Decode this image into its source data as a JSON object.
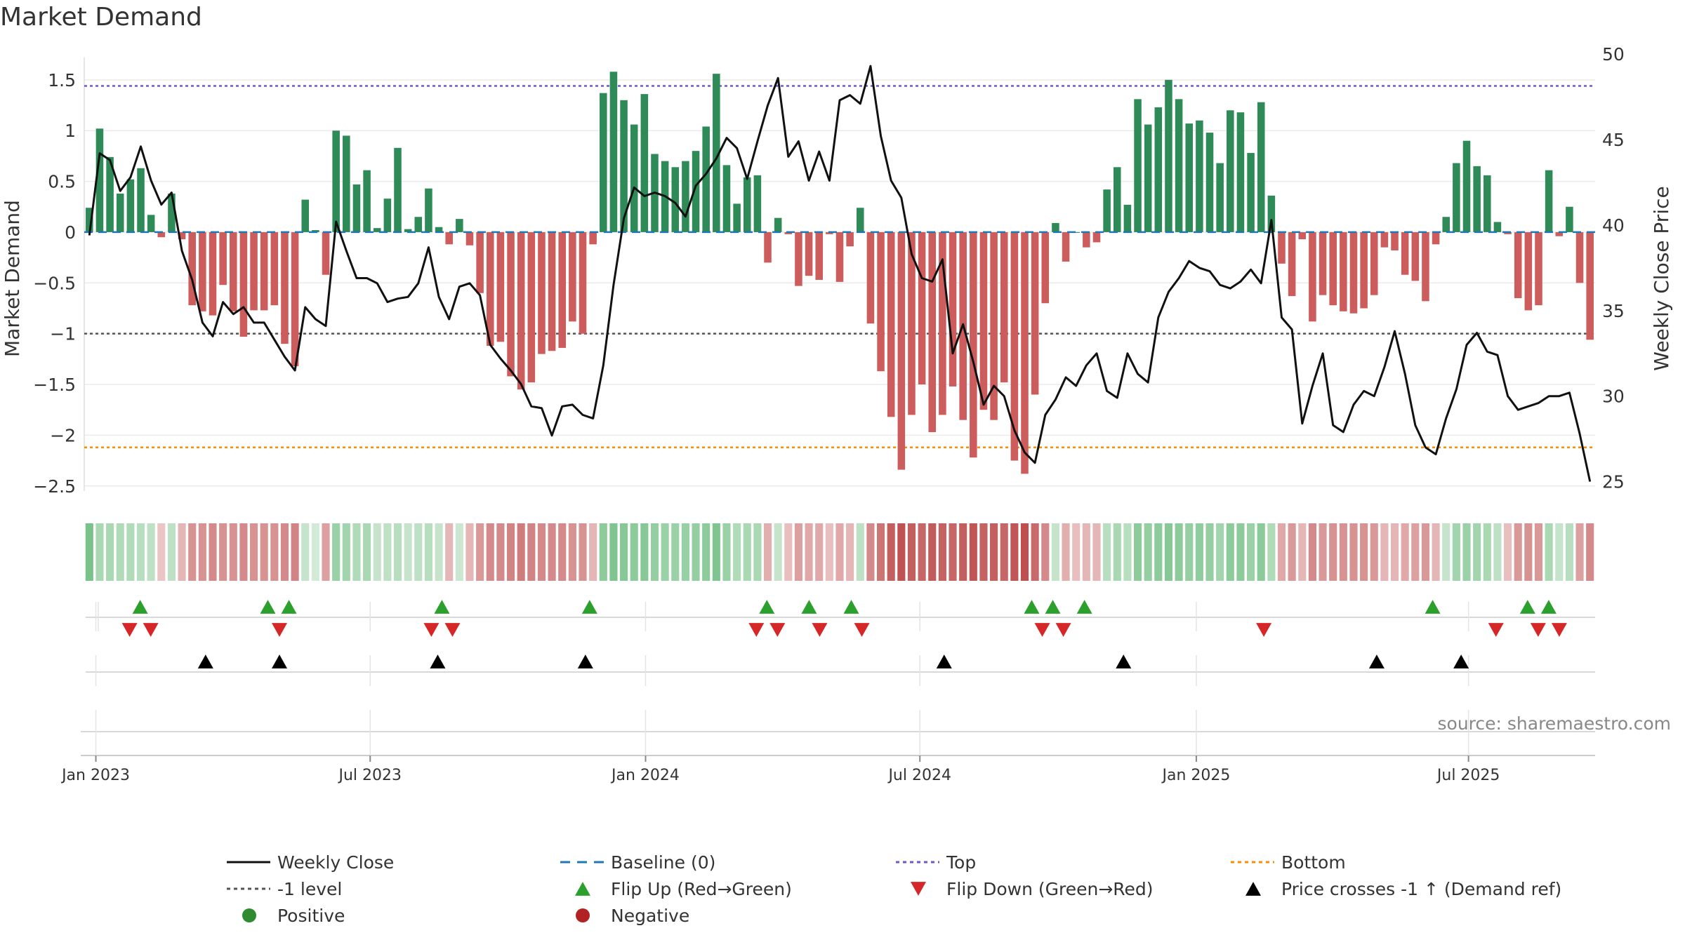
{
  "chart_data": {
    "type": "bar",
    "title": "Market Demand",
    "ylabel": "Market Demand",
    "y2label": "Weekly Close Price",
    "ylim": [
      -2.55,
      1.72
    ],
    "y2lim": [
      24.45,
      49.8
    ],
    "yticks": [
      1.5,
      1,
      0.5,
      0,
      -0.5,
      -1,
      -1.5,
      -2,
      -2.5
    ],
    "ytick_labels": [
      "1.5",
      "1",
      "0.5",
      "0",
      "−0.5",
      "−1",
      "−1.5",
      "−2",
      "−2.5"
    ],
    "y2ticks": [
      50,
      45,
      40,
      35,
      30,
      25
    ],
    "x_start_week_of_year": 51.5,
    "x_week_span": 143.2,
    "xticks": [
      {
        "label": "Jan 2023",
        "week": 52.6
      },
      {
        "label": "Jul 2023",
        "week": 78.6
      },
      {
        "label": "Jan 2024",
        "week": 104.7
      },
      {
        "label": "Jul 2024",
        "week": 130.7
      },
      {
        "label": "Jan 2025",
        "week": 156.9
      },
      {
        "label": "Jul 2025",
        "week": 182.7
      }
    ],
    "levels": {
      "top": 1.44,
      "minus_one": -1.0,
      "bottom": -2.12,
      "baseline": 0
    },
    "demand": [
      0.24,
      1.02,
      0.74,
      0.38,
      0.52,
      0.63,
      0.17,
      -0.05,
      0.38,
      -0.07,
      -0.72,
      -0.78,
      -0.82,
      -0.52,
      -0.78,
      -1.03,
      -0.77,
      -0.77,
      -0.72,
      -1.1,
      -1.32,
      0.32,
      0.02,
      -0.42,
      1.0,
      0.95,
      0.47,
      0.61,
      0.04,
      0.33,
      0.83,
      0.03,
      0.15,
      0.43,
      0.05,
      -0.12,
      0.13,
      -0.13,
      -0.6,
      -1.12,
      -1.08,
      -1.42,
      -1.55,
      -1.48,
      -1.2,
      -1.17,
      -1.14,
      -0.88,
      -1.0,
      -0.12,
      1.37,
      1.58,
      1.3,
      1.06,
      1.36,
      0.77,
      0.7,
      0.64,
      0.7,
      0.8,
      1.04,
      1.56,
      0.66,
      0.28,
      0.54,
      0.56,
      -0.3,
      0.14,
      -0.02,
      -0.53,
      -0.43,
      -0.47,
      -0.02,
      -0.49,
      -0.14,
      0.24,
      -0.9,
      -1.37,
      -1.82,
      -2.34,
      -1.8,
      -1.5,
      -1.97,
      -1.8,
      -1.52,
      -1.85,
      -2.22,
      -1.75,
      -1.85,
      -1.48,
      -2.25,
      -2.38,
      -1.6,
      -0.7,
      0.09,
      -0.29,
      0.0,
      -0.15,
      -0.1,
      0.42,
      0.64,
      0.27,
      1.31,
      1.06,
      1.23,
      1.5,
      1.31,
      1.07,
      1.1,
      0.98,
      0.68,
      1.2,
      1.18,
      0.78,
      1.28,
      0.36,
      -0.31,
      -0.63,
      -0.07,
      -0.88,
      -0.62,
      -0.72,
      -0.78,
      -0.8,
      -0.75,
      -0.62,
      -0.15,
      -0.18,
      -0.42,
      -0.48,
      -0.68,
      -0.12,
      0.15,
      0.68,
      0.9,
      0.65,
      0.56,
      0.1,
      -0.02,
      -0.65,
      -0.77,
      -0.72,
      0.61,
      -0.04,
      0.25,
      -0.5,
      -1.06
    ],
    "price": [
      39.4,
      44.2,
      43.8,
      42.0,
      42.8,
      44.6,
      42.6,
      41.2,
      41.9,
      38.5,
      36.8,
      34.3,
      33.5,
      35.5,
      34.8,
      35.2,
      34.3,
      34.3,
      33.3,
      32.3,
      31.5,
      35.2,
      34.5,
      34.1,
      40.2,
      38.5,
      36.9,
      36.9,
      36.6,
      35.5,
      35.7,
      35.8,
      36.6,
      38.7,
      35.8,
      34.5,
      36.4,
      36.6,
      35.9,
      33.0,
      32.2,
      31.5,
      30.7,
      29.4,
      29.3,
      27.7,
      29.4,
      29.5,
      28.9,
      28.7,
      31.8,
      36.5,
      40.4,
      42.2,
      41.7,
      41.9,
      41.7,
      41.3,
      40.5,
      42.3,
      43.0,
      43.9,
      45.1,
      44.5,
      42.7,
      44.9,
      47.0,
      48.6,
      44.0,
      44.9,
      42.6,
      44.3,
      42.6,
      47.3,
      47.6,
      47.1,
      49.3,
      45.2,
      42.6,
      41.6,
      38.3,
      36.9,
      36.7,
      38.0,
      32.5,
      34.2,
      32.0,
      29.5,
      30.6,
      30.0,
      28.0,
      26.7,
      26.1,
      28.9,
      29.8,
      31.1,
      30.6,
      31.8,
      32.5,
      30.3,
      29.9,
      32.5,
      31.3,
      30.8,
      34.6,
      36.1,
      36.9,
      37.9,
      37.5,
      37.3,
      36.5,
      36.3,
      36.7,
      37.4,
      36.6,
      40.3,
      34.6,
      33.9,
      28.4,
      30.6,
      32.5,
      28.3,
      27.9,
      29.5,
      30.3,
      30.0,
      31.7,
      33.8,
      31.3,
      28.3,
      27.0,
      26.6,
      28.7,
      30.4,
      33.0,
      33.7,
      32.6,
      32.4,
      30.0,
      29.2,
      29.4,
      29.6,
      30.0,
      30.0,
      30.2,
      27.8,
      25.0
    ],
    "heat_strip": [
      0.85,
      0.5,
      0.5,
      0.45,
      0.45,
      0.4,
      0.35,
      -0.2,
      0.35,
      -0.3,
      -0.55,
      -0.55,
      -0.6,
      -0.55,
      -0.55,
      -0.6,
      -0.55,
      -0.55,
      -0.55,
      -0.6,
      -0.65,
      0.3,
      0.2,
      -0.45,
      0.6,
      0.55,
      0.45,
      0.5,
      0.3,
      0.35,
      0.4,
      0.3,
      0.35,
      0.4,
      0.3,
      -0.3,
      0.25,
      -0.3,
      -0.5,
      -0.6,
      -0.6,
      -0.65,
      -0.7,
      -0.65,
      -0.6,
      -0.6,
      -0.6,
      -0.55,
      -0.55,
      -0.3,
      0.7,
      0.8,
      0.75,
      0.7,
      0.75,
      0.65,
      0.6,
      0.6,
      0.62,
      0.65,
      0.7,
      0.8,
      0.6,
      0.45,
      0.5,
      0.5,
      -0.35,
      0.3,
      -0.25,
      -0.45,
      -0.4,
      -0.4,
      -0.25,
      -0.4,
      -0.3,
      0.35,
      -0.6,
      -0.75,
      -0.9,
      -0.98,
      -0.9,
      -0.85,
      -0.92,
      -0.88,
      -0.85,
      -0.9,
      -0.96,
      -0.88,
      -0.9,
      -0.85,
      -0.96,
      -1.0,
      -0.82,
      -0.6,
      0.3,
      -0.35,
      -0.25,
      -0.3,
      -0.3,
      0.4,
      0.5,
      0.4,
      0.7,
      0.65,
      0.7,
      0.75,
      0.7,
      0.65,
      0.68,
      0.65,
      0.55,
      0.7,
      0.7,
      0.6,
      0.72,
      0.45,
      -0.4,
      -0.5,
      -0.3,
      -0.6,
      -0.5,
      -0.55,
      -0.55,
      -0.55,
      -0.55,
      -0.5,
      -0.3,
      -0.3,
      -0.4,
      -0.45,
      -0.5,
      -0.3,
      0.3,
      0.55,
      0.6,
      0.55,
      0.5,
      0.35,
      -0.25,
      -0.5,
      -0.55,
      -0.5,
      0.5,
      0.3,
      0.4,
      -0.45,
      -0.6
    ],
    "flip_up_weeks": [
      56.8,
      68.9,
      70.9,
      85.4,
      99.4,
      116.2,
      120.2,
      124.2,
      141.3,
      143.3,
      146.3,
      179.3,
      188.3,
      190.3
    ],
    "flip_down_weeks": [
      55.8,
      57.8,
      70.0,
      84.4,
      86.4,
      115.2,
      117.2,
      121.2,
      125.2,
      142.3,
      144.3,
      163.3,
      185.3,
      189.3,
      191.3
    ],
    "cross_weeks": [
      63.0,
      70.0,
      85.0,
      99.0,
      133.0,
      150.0,
      174.0,
      182.0
    ]
  },
  "legend": [
    {
      "label": "Weekly Close",
      "kind": "line"
    },
    {
      "label": "Baseline (0)",
      "kind": "dash"
    },
    {
      "label": "Top",
      "kind": "dot-blue"
    },
    {
      "label": "Bottom",
      "kind": "dot-orange"
    },
    {
      "label": "-1 level",
      "kind": "dot-gray"
    },
    {
      "label": "Flip Up (Red→Green)",
      "kind": "tri-up-green"
    },
    {
      "label": "Flip Down (Green→Red)",
      "kind": "tri-down-red"
    },
    {
      "label": "Price crosses -1 ↑ (Demand ref)",
      "kind": "tri-up-black"
    },
    {
      "label": "Positive",
      "kind": "dot-green"
    },
    {
      "label": "Negative",
      "kind": "dot-red"
    }
  ],
  "source": "source: sharemaestro.com",
  "colors": {
    "positive": "#2e8b57",
    "negative": "#cd5c5c",
    "price": "#111111",
    "baseline": "#1f77b4",
    "top": "#6a5acd",
    "bottom": "#ff8c00",
    "minus_one": "#555555",
    "flip_up": "#2ca02c",
    "flip_down": "#d62728",
    "cross": "#000000"
  }
}
